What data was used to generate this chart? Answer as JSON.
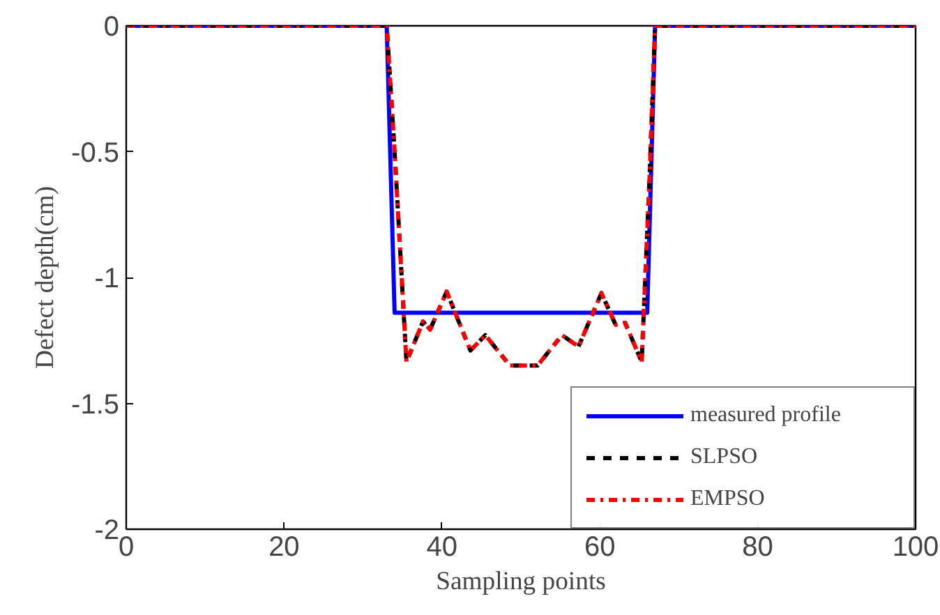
{
  "chart_data": {
    "type": "line",
    "xlabel": "Sampling points",
    "ylabel": "Defect depth(cm)",
    "xlim": [
      0,
      100
    ],
    "ylim": [
      -2,
      0
    ],
    "xticks": [
      0,
      20,
      40,
      60,
      80,
      100
    ],
    "yticks": [
      -2,
      -1.5,
      -1,
      -0.5,
      0
    ],
    "grid": false,
    "legend": "bottom right",
    "series": [
      {
        "name": "measured profile",
        "color": "#0000ff",
        "line_style": "solid",
        "x": [
          0,
          33,
          34,
          66,
          67,
          100
        ],
        "values": [
          0,
          0,
          -1.14,
          -1.14,
          0,
          0
        ]
      },
      {
        "name": "SLPSO",
        "color": "#000000",
        "line_style": "dashed",
        "x": [
          0,
          33,
          34,
          35.5,
          37.6,
          38.5,
          40.6,
          43.6,
          45.5,
          48.6,
          52.1,
          55.2,
          57.3,
          60.2,
          62,
          63.2,
          65.3,
          66.3,
          67,
          100
        ],
        "values": [
          0,
          0,
          -0.5,
          -1.335,
          -1.175,
          -1.207,
          -1.056,
          -1.29,
          -1.229,
          -1.35,
          -1.35,
          -1.229,
          -1.274,
          -1.062,
          -1.188,
          -1.18,
          -1.335,
          -0.6,
          0,
          0
        ]
      },
      {
        "name": "EMPSO",
        "color": "#ff0000",
        "line_style": "dashdot",
        "x": [
          0,
          33,
          34,
          35.5,
          37.6,
          38.5,
          40.6,
          43.6,
          45.5,
          48.6,
          52.1,
          55.2,
          57.3,
          60.2,
          62,
          63.2,
          65.3,
          66.3,
          67,
          100
        ],
        "values": [
          0,
          0,
          -0.5,
          -1.335,
          -1.175,
          -1.207,
          -1.056,
          -1.29,
          -1.229,
          -1.35,
          -1.35,
          -1.229,
          -1.274,
          -1.062,
          -1.188,
          -1.18,
          -1.335,
          -0.6,
          0,
          0
        ]
      }
    ]
  }
}
